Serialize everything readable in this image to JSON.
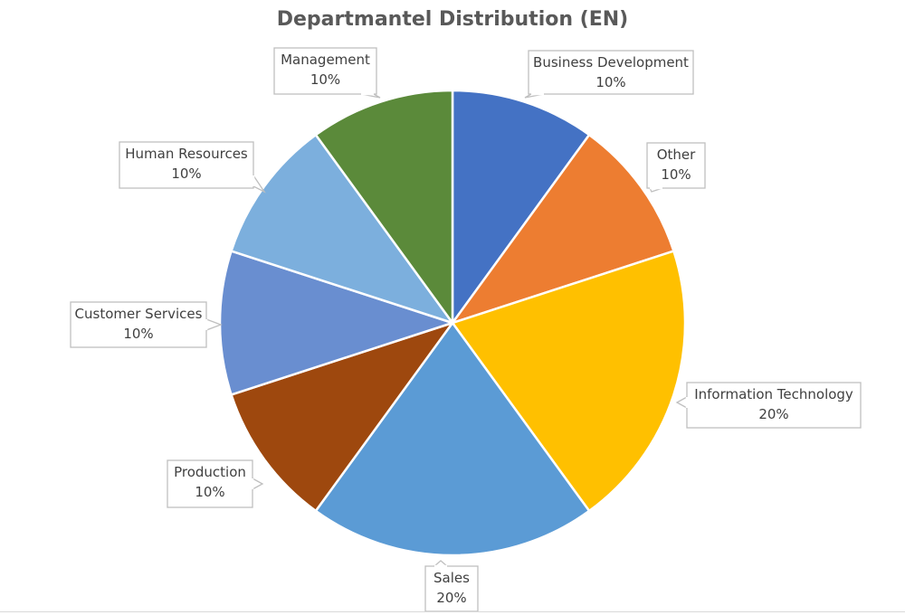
{
  "chart_data": {
    "type": "pie",
    "title": "Departmantel Distribution (EN)",
    "slices": [
      {
        "name": "Business Development",
        "value": 10,
        "label": "10%",
        "color": "#4472C4"
      },
      {
        "name": "Other",
        "value": 10,
        "label": "10%",
        "color": "#ED7D31"
      },
      {
        "name": "Information Technology",
        "value": 20,
        "label": "20%",
        "color": "#FFC000"
      },
      {
        "name": "Sales",
        "value": 20,
        "label": "20%",
        "color": "#5B9BD5"
      },
      {
        "name": "Production",
        "value": 10,
        "label": "10%",
        "color": "#9E480E"
      },
      {
        "name": "Customer Services",
        "value": 10,
        "label": "10%",
        "color": "#698ED0"
      },
      {
        "name": "Human Resources",
        "value": 10,
        "label": "10%",
        "color": "#7CAFDD"
      },
      {
        "name": "Management",
        "value": 10,
        "label": "10%",
        "color": "#5B8A3A"
      }
    ],
    "start_angle": "12 o'clock",
    "direction": "clockwise",
    "legend": "none"
  }
}
